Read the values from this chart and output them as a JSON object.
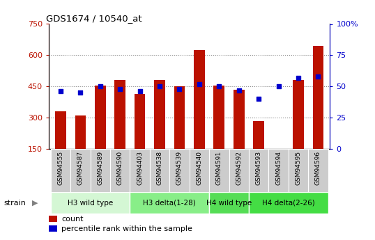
{
  "title": "GDS1674 / 10540_at",
  "samples": [
    "GSM94555",
    "GSM94587",
    "GSM94589",
    "GSM94590",
    "GSM94403",
    "GSM94538",
    "GSM94539",
    "GSM94540",
    "GSM94591",
    "GSM94592",
    "GSM94593",
    "GSM94594",
    "GSM94595",
    "GSM94596"
  ],
  "counts": [
    330,
    310,
    455,
    480,
    415,
    480,
    450,
    625,
    455,
    435,
    285,
    130,
    480,
    645
  ],
  "percentiles": [
    46,
    45,
    50,
    48,
    46,
    50,
    48,
    52,
    50,
    47,
    40,
    50,
    57,
    58
  ],
  "groups": [
    {
      "label": "H3 wild type",
      "start": 0,
      "end": 4,
      "color": "#d4f7d4"
    },
    {
      "label": "H3 delta(1-28)",
      "start": 4,
      "end": 8,
      "color": "#88ee88"
    },
    {
      "label": "H4 wild type",
      "start": 8,
      "end": 10,
      "color": "#55dd55"
    },
    {
      "label": "H4 delta(2-26)",
      "start": 10,
      "end": 14,
      "color": "#44dd44"
    }
  ],
  "ylim_left": [
    150,
    750
  ],
  "ylim_right": [
    0,
    100
  ],
  "yticks_left": [
    150,
    300,
    450,
    600,
    750
  ],
  "yticks_right": [
    0,
    25,
    50,
    75,
    100
  ],
  "bar_color": "#bb1100",
  "dot_color": "#0000cc",
  "bar_bottom": 150,
  "grid_values": [
    300,
    450,
    600
  ],
  "tick_cell_color": "#cccccc",
  "background_color": "#ffffff"
}
